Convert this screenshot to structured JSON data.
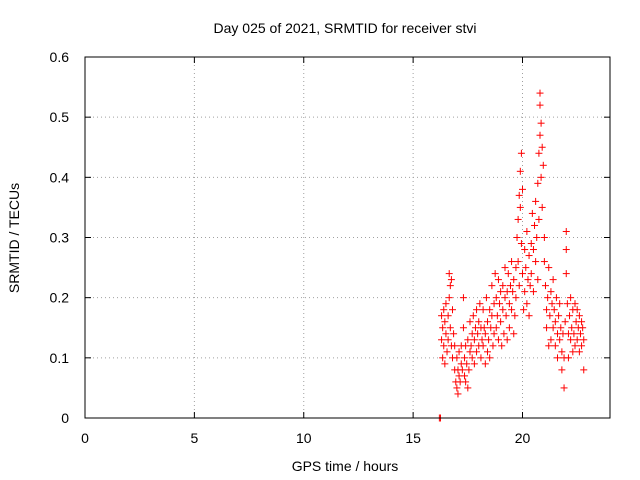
{
  "chart_data": {
    "type": "scatter",
    "title": "Day 025 of 2021, SRMTID for receiver stvi",
    "xlabel": "GPS time / hours",
    "ylabel": "SRMTID / TECUs",
    "xlim": [
      0,
      24
    ],
    "ylim": [
      0,
      0.6
    ],
    "xticks": [
      0,
      5,
      10,
      15,
      20
    ],
    "xtick_labels": [
      "0",
      "5",
      "10",
      "15",
      "20"
    ],
    "yticks": [
      0,
      0.1,
      0.2,
      0.3,
      0.4,
      0.5,
      0.6
    ],
    "ytick_labels": [
      "0",
      "0.1",
      "0.2",
      "0.3",
      "0.4",
      "0.5",
      "0.6"
    ],
    "grid": true,
    "marker": "plus",
    "color": "#ff0000",
    "series": [
      {
        "name": "SRMTID",
        "points": [
          [
            16.2,
            0.0
          ],
          [
            16.25,
            0.0
          ],
          [
            16.3,
            0.17
          ],
          [
            16.3,
            0.13
          ],
          [
            16.35,
            0.15
          ],
          [
            16.35,
            0.1
          ],
          [
            16.4,
            0.18
          ],
          [
            16.4,
            0.12
          ],
          [
            16.45,
            0.09
          ],
          [
            16.45,
            0.16
          ],
          [
            16.5,
            0.19
          ],
          [
            16.5,
            0.14
          ],
          [
            16.55,
            0.11
          ],
          [
            16.6,
            0.17
          ],
          [
            16.6,
            0.13
          ],
          [
            16.65,
            0.24
          ],
          [
            16.65,
            0.2
          ],
          [
            16.7,
            0.22
          ],
          [
            16.7,
            0.15
          ],
          [
            16.75,
            0.23
          ],
          [
            16.75,
            0.12
          ],
          [
            16.8,
            0.18
          ],
          [
            16.8,
            0.1
          ],
          [
            16.85,
            0.14
          ],
          [
            16.9,
            0.08
          ],
          [
            16.9,
            0.12
          ],
          [
            16.95,
            0.06
          ],
          [
            17.0,
            0.1
          ],
          [
            17.0,
            0.05
          ],
          [
            17.05,
            0.08
          ],
          [
            17.05,
            0.04
          ],
          [
            17.1,
            0.07
          ],
          [
            17.1,
            0.11
          ],
          [
            17.15,
            0.06
          ],
          [
            17.2,
            0.09
          ],
          [
            17.2,
            0.12
          ],
          [
            17.25,
            0.08
          ],
          [
            17.3,
            0.2
          ],
          [
            17.3,
            0.15
          ],
          [
            17.35,
            0.1
          ],
          [
            17.35,
            0.07
          ],
          [
            17.4,
            0.12
          ],
          [
            17.4,
            0.06
          ],
          [
            17.45,
            0.09
          ],
          [
            17.5,
            0.05
          ],
          [
            17.5,
            0.13
          ],
          [
            17.55,
            0.08
          ],
          [
            17.6,
            0.11
          ],
          [
            17.6,
            0.16
          ],
          [
            17.65,
            0.12
          ],
          [
            17.7,
            0.14
          ],
          [
            17.7,
            0.1
          ],
          [
            17.75,
            0.17
          ],
          [
            17.8,
            0.13
          ],
          [
            17.8,
            0.09
          ],
          [
            17.85,
            0.15
          ],
          [
            17.9,
            0.11
          ],
          [
            17.9,
            0.18
          ],
          [
            17.95,
            0.14
          ],
          [
            18.0,
            0.16
          ],
          [
            18.0,
            0.12
          ],
          [
            18.05,
            0.19
          ],
          [
            18.1,
            0.15
          ],
          [
            18.1,
            0.1
          ],
          [
            18.15,
            0.13
          ],
          [
            18.2,
            0.18
          ],
          [
            18.2,
            0.12
          ],
          [
            18.25,
            0.15
          ],
          [
            18.3,
            0.09
          ],
          [
            18.3,
            0.14
          ],
          [
            18.35,
            0.2
          ],
          [
            18.4,
            0.16
          ],
          [
            18.4,
            0.11
          ],
          [
            18.45,
            0.13
          ],
          [
            18.5,
            0.18
          ],
          [
            18.5,
            0.1
          ],
          [
            18.55,
            0.15
          ],
          [
            18.6,
            0.22
          ],
          [
            18.6,
            0.17
          ],
          [
            18.65,
            0.12
          ],
          [
            18.7,
            0.19
          ],
          [
            18.7,
            0.14
          ],
          [
            18.75,
            0.24
          ],
          [
            18.8,
            0.2
          ],
          [
            18.8,
            0.15
          ],
          [
            18.85,
            0.17
          ],
          [
            18.9,
            0.23
          ],
          [
            18.9,
            0.13
          ],
          [
            18.95,
            0.19
          ],
          [
            19.0,
            0.21
          ],
          [
            19.0,
            0.16
          ],
          [
            19.05,
            0.12
          ],
          [
            19.1,
            0.18
          ],
          [
            19.1,
            0.22
          ],
          [
            19.15,
            0.14
          ],
          [
            19.2,
            0.2
          ],
          [
            19.2,
            0.25
          ],
          [
            19.25,
            0.17
          ],
          [
            19.3,
            0.21
          ],
          [
            19.3,
            0.13
          ],
          [
            19.35,
            0.24
          ],
          [
            19.4,
            0.19
          ],
          [
            19.4,
            0.15
          ],
          [
            19.45,
            0.22
          ],
          [
            19.5,
            0.26
          ],
          [
            19.5,
            0.18
          ],
          [
            19.55,
            0.21
          ],
          [
            19.6,
            0.14
          ],
          [
            19.6,
            0.23
          ],
          [
            19.65,
            0.17
          ],
          [
            19.7,
            0.25
          ],
          [
            19.7,
            0.2
          ],
          [
            19.75,
            0.3
          ],
          [
            19.8,
            0.33
          ],
          [
            19.8,
            0.26
          ],
          [
            19.85,
            0.37
          ],
          [
            19.85,
            0.22
          ],
          [
            19.9,
            0.35
          ],
          [
            19.9,
            0.41
          ],
          [
            19.95,
            0.44
          ],
          [
            19.95,
            0.29
          ],
          [
            20.0,
            0.38
          ],
          [
            20.0,
            0.24
          ],
          [
            20.05,
            0.18
          ],
          [
            20.1,
            0.28
          ],
          [
            20.1,
            0.21
          ],
          [
            20.15,
            0.25
          ],
          [
            20.2,
            0.19
          ],
          [
            20.2,
            0.31
          ],
          [
            20.25,
            0.23
          ],
          [
            20.3,
            0.27
          ],
          [
            20.3,
            0.17
          ],
          [
            20.35,
            0.22
          ],
          [
            20.4,
            0.29
          ],
          [
            20.4,
            0.24
          ],
          [
            20.45,
            0.34
          ],
          [
            20.5,
            0.28
          ],
          [
            20.5,
            0.21
          ],
          [
            20.55,
            0.32
          ],
          [
            20.6,
            0.26
          ],
          [
            20.6,
            0.36
          ],
          [
            20.65,
            0.3
          ],
          [
            20.7,
            0.23
          ],
          [
            20.7,
            0.39
          ],
          [
            20.75,
            0.44
          ],
          [
            20.75,
            0.33
          ],
          [
            20.8,
            0.47
          ],
          [
            20.8,
            0.52
          ],
          [
            20.8,
            0.54
          ],
          [
            20.85,
            0.49
          ],
          [
            20.85,
            0.4
          ],
          [
            20.9,
            0.45
          ],
          [
            20.9,
            0.35
          ],
          [
            20.95,
            0.42
          ],
          [
            21.0,
            0.3
          ],
          [
            21.0,
            0.26
          ],
          [
            21.05,
            0.22
          ],
          [
            21.1,
            0.18
          ],
          [
            21.1,
            0.15
          ],
          [
            21.15,
            0.2
          ],
          [
            21.2,
            0.12
          ],
          [
            21.2,
            0.25
          ],
          [
            21.25,
            0.17
          ],
          [
            21.3,
            0.21
          ],
          [
            21.3,
            0.13
          ],
          [
            21.35,
            0.19
          ],
          [
            21.4,
            0.15
          ],
          [
            21.4,
            0.23
          ],
          [
            21.45,
            0.18
          ],
          [
            21.5,
            0.12
          ],
          [
            21.5,
            0.16
          ],
          [
            21.55,
            0.2
          ],
          [
            21.6,
            0.14
          ],
          [
            21.6,
            0.1
          ],
          [
            21.65,
            0.17
          ],
          [
            21.7,
            0.13
          ],
          [
            21.7,
            0.19
          ],
          [
            21.75,
            0.15
          ],
          [
            21.8,
            0.11
          ],
          [
            21.8,
            0.08
          ],
          [
            21.85,
            0.14
          ],
          [
            21.9,
            0.05
          ],
          [
            21.9,
            0.1
          ],
          [
            21.95,
            0.16
          ],
          [
            22.0,
            0.31
          ],
          [
            22.0,
            0.28
          ],
          [
            22.0,
            0.24
          ],
          [
            22.05,
            0.19
          ],
          [
            22.1,
            0.14
          ],
          [
            22.1,
            0.1
          ],
          [
            22.15,
            0.17
          ],
          [
            22.2,
            0.13
          ],
          [
            22.2,
            0.2
          ],
          [
            22.25,
            0.15
          ],
          [
            22.3,
            0.11
          ],
          [
            22.3,
            0.18
          ],
          [
            22.35,
            0.14
          ],
          [
            22.4,
            0.19
          ],
          [
            22.4,
            0.12
          ],
          [
            22.45,
            0.16
          ],
          [
            22.5,
            0.13
          ],
          [
            22.5,
            0.18
          ],
          [
            22.55,
            0.15
          ],
          [
            22.6,
            0.11
          ],
          [
            22.6,
            0.17
          ],
          [
            22.65,
            0.14
          ],
          [
            22.7,
            0.16
          ],
          [
            22.7,
            0.12
          ],
          [
            22.75,
            0.15
          ],
          [
            22.8,
            0.08
          ],
          [
            22.8,
            0.13
          ]
        ]
      }
    ]
  }
}
